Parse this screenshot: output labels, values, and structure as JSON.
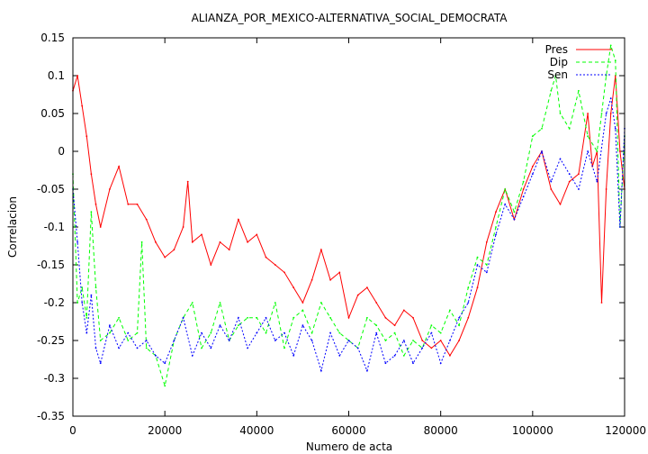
{
  "chart_data": {
    "type": "line",
    "title": "ALIANZA_POR_MEXICO-ALTERNATIVA_SOCIAL_DEMOCRATA",
    "xlabel": "Numero de acta",
    "ylabel": "Correlacion",
    "xlim": [
      0,
      120000
    ],
    "ylim": [
      -0.35,
      0.15
    ],
    "xticks": [
      0,
      20000,
      40000,
      60000,
      80000,
      100000,
      120000
    ],
    "xtick_labels": [
      "0",
      "20000",
      "40000",
      "60000",
      "80000",
      "100000",
      "120000"
    ],
    "yticks": [
      -0.35,
      -0.3,
      -0.25,
      -0.2,
      -0.15,
      -0.1,
      -0.05,
      0,
      0.05,
      0.1,
      0.15
    ],
    "ytick_labels": [
      "-0.35",
      "-0.3",
      "-0.25",
      "-0.2",
      "-0.15",
      "-0.1",
      "-0.05",
      "0",
      "0.05",
      "0.1",
      "0.15"
    ],
    "grid": false,
    "legend_position": "top-right",
    "series": [
      {
        "name": "Pres",
        "color": "#ff0000",
        "dash": "solid",
        "x": [
          0,
          1000,
          2000,
          3000,
          4000,
          5000,
          6000,
          8000,
          10000,
          12000,
          14000,
          16000,
          18000,
          20000,
          22000,
          24000,
          25000,
          26000,
          28000,
          30000,
          32000,
          34000,
          36000,
          38000,
          40000,
          42000,
          44000,
          46000,
          48000,
          50000,
          52000,
          54000,
          56000,
          58000,
          60000,
          62000,
          64000,
          66000,
          68000,
          70000,
          72000,
          74000,
          76000,
          78000,
          80000,
          82000,
          84000,
          86000,
          88000,
          90000,
          92000,
          94000,
          96000,
          98000,
          100000,
          102000,
          104000,
          106000,
          108000,
          110000,
          112000,
          113000,
          114000,
          115000,
          116000,
          117000,
          118000,
          119000,
          120000
        ],
        "values": [
          0.08,
          0.1,
          0.06,
          0.02,
          -0.03,
          -0.07,
          -0.1,
          -0.05,
          -0.02,
          -0.07,
          -0.07,
          -0.09,
          -0.12,
          -0.14,
          -0.13,
          -0.1,
          -0.04,
          -0.12,
          -0.11,
          -0.15,
          -0.12,
          -0.13,
          -0.09,
          -0.12,
          -0.11,
          -0.14,
          -0.15,
          -0.16,
          -0.18,
          -0.2,
          -0.17,
          -0.13,
          -0.17,
          -0.16,
          -0.22,
          -0.19,
          -0.18,
          -0.2,
          -0.22,
          -0.23,
          -0.21,
          -0.22,
          -0.25,
          -0.26,
          -0.25,
          -0.27,
          -0.25,
          -0.22,
          -0.18,
          -0.12,
          -0.08,
          -0.05,
          -0.09,
          -0.05,
          -0.02,
          0.0,
          -0.05,
          -0.07,
          -0.04,
          -0.03,
          0.05,
          -0.02,
          0.0,
          -0.2,
          -0.05,
          0.05,
          0.1,
          0.0,
          -0.05
        ]
      },
      {
        "name": "Dip",
        "color": "#00ff00",
        "dash": "4,3",
        "x": [
          0,
          1000,
          2000,
          3000,
          4000,
          5000,
          6000,
          8000,
          10000,
          12000,
          14000,
          15000,
          16000,
          18000,
          20000,
          22000,
          24000,
          26000,
          28000,
          30000,
          32000,
          34000,
          36000,
          38000,
          40000,
          42000,
          44000,
          46000,
          48000,
          50000,
          52000,
          54000,
          56000,
          58000,
          60000,
          62000,
          64000,
          66000,
          68000,
          70000,
          72000,
          74000,
          76000,
          78000,
          80000,
          82000,
          84000,
          86000,
          88000,
          90000,
          92000,
          94000,
          96000,
          98000,
          100000,
          102000,
          104000,
          105000,
          106000,
          108000,
          110000,
          112000,
          114000,
          115000,
          116000,
          117000,
          118000,
          119000,
          120000
        ],
        "values": [
          -0.03,
          -0.2,
          -0.18,
          -0.22,
          -0.08,
          -0.18,
          -0.25,
          -0.24,
          -0.22,
          -0.25,
          -0.24,
          -0.12,
          -0.26,
          -0.27,
          -0.31,
          -0.25,
          -0.22,
          -0.2,
          -0.26,
          -0.24,
          -0.2,
          -0.25,
          -0.23,
          -0.22,
          -0.22,
          -0.24,
          -0.2,
          -0.26,
          -0.22,
          -0.21,
          -0.24,
          -0.2,
          -0.22,
          -0.24,
          -0.25,
          -0.26,
          -0.22,
          -0.23,
          -0.25,
          -0.24,
          -0.27,
          -0.25,
          -0.26,
          -0.23,
          -0.24,
          -0.21,
          -0.23,
          -0.18,
          -0.14,
          -0.15,
          -0.1,
          -0.05,
          -0.08,
          -0.04,
          0.02,
          0.03,
          0.08,
          0.1,
          0.05,
          0.03,
          0.08,
          0.02,
          0.0,
          0.05,
          0.1,
          0.14,
          0.12,
          -0.1,
          0.02
        ]
      },
      {
        "name": "Sen",
        "color": "#0000ff",
        "dash": "2,2",
        "x": [
          0,
          1000,
          2000,
          3000,
          4000,
          5000,
          6000,
          8000,
          10000,
          12000,
          14000,
          16000,
          18000,
          20000,
          22000,
          24000,
          26000,
          28000,
          30000,
          32000,
          34000,
          36000,
          38000,
          40000,
          42000,
          44000,
          46000,
          48000,
          50000,
          52000,
          54000,
          56000,
          58000,
          60000,
          62000,
          64000,
          66000,
          68000,
          70000,
          72000,
          74000,
          76000,
          78000,
          80000,
          82000,
          84000,
          86000,
          88000,
          90000,
          92000,
          94000,
          96000,
          98000,
          100000,
          102000,
          104000,
          106000,
          108000,
          110000,
          112000,
          114000,
          116000,
          117000,
          118000,
          119000,
          120000
        ],
        "values": [
          -0.05,
          -0.12,
          -0.2,
          -0.24,
          -0.19,
          -0.26,
          -0.28,
          -0.23,
          -0.26,
          -0.24,
          -0.26,
          -0.25,
          -0.27,
          -0.28,
          -0.25,
          -0.22,
          -0.27,
          -0.24,
          -0.26,
          -0.23,
          -0.25,
          -0.22,
          -0.26,
          -0.24,
          -0.22,
          -0.25,
          -0.24,
          -0.27,
          -0.23,
          -0.25,
          -0.29,
          -0.24,
          -0.27,
          -0.25,
          -0.26,
          -0.29,
          -0.24,
          -0.28,
          -0.27,
          -0.25,
          -0.28,
          -0.26,
          -0.24,
          -0.28,
          -0.25,
          -0.22,
          -0.2,
          -0.15,
          -0.16,
          -0.11,
          -0.07,
          -0.09,
          -0.06,
          -0.03,
          0.0,
          -0.04,
          -0.01,
          -0.03,
          -0.05,
          0.0,
          -0.04,
          0.05,
          0.07,
          0.03,
          -0.1,
          0.03
        ]
      }
    ]
  }
}
